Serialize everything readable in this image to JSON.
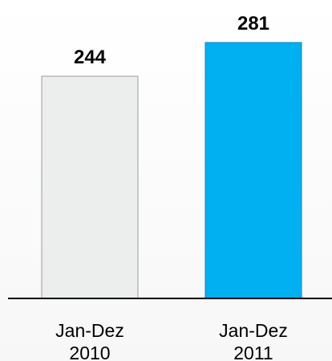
{
  "chart_data": {
    "type": "bar",
    "categories": [
      "Jan-Dez 2010",
      "Jan-Dez 2011"
    ],
    "values": [
      244,
      281
    ],
    "colors": [
      "#eceeee",
      "#00b0f0"
    ]
  }
}
